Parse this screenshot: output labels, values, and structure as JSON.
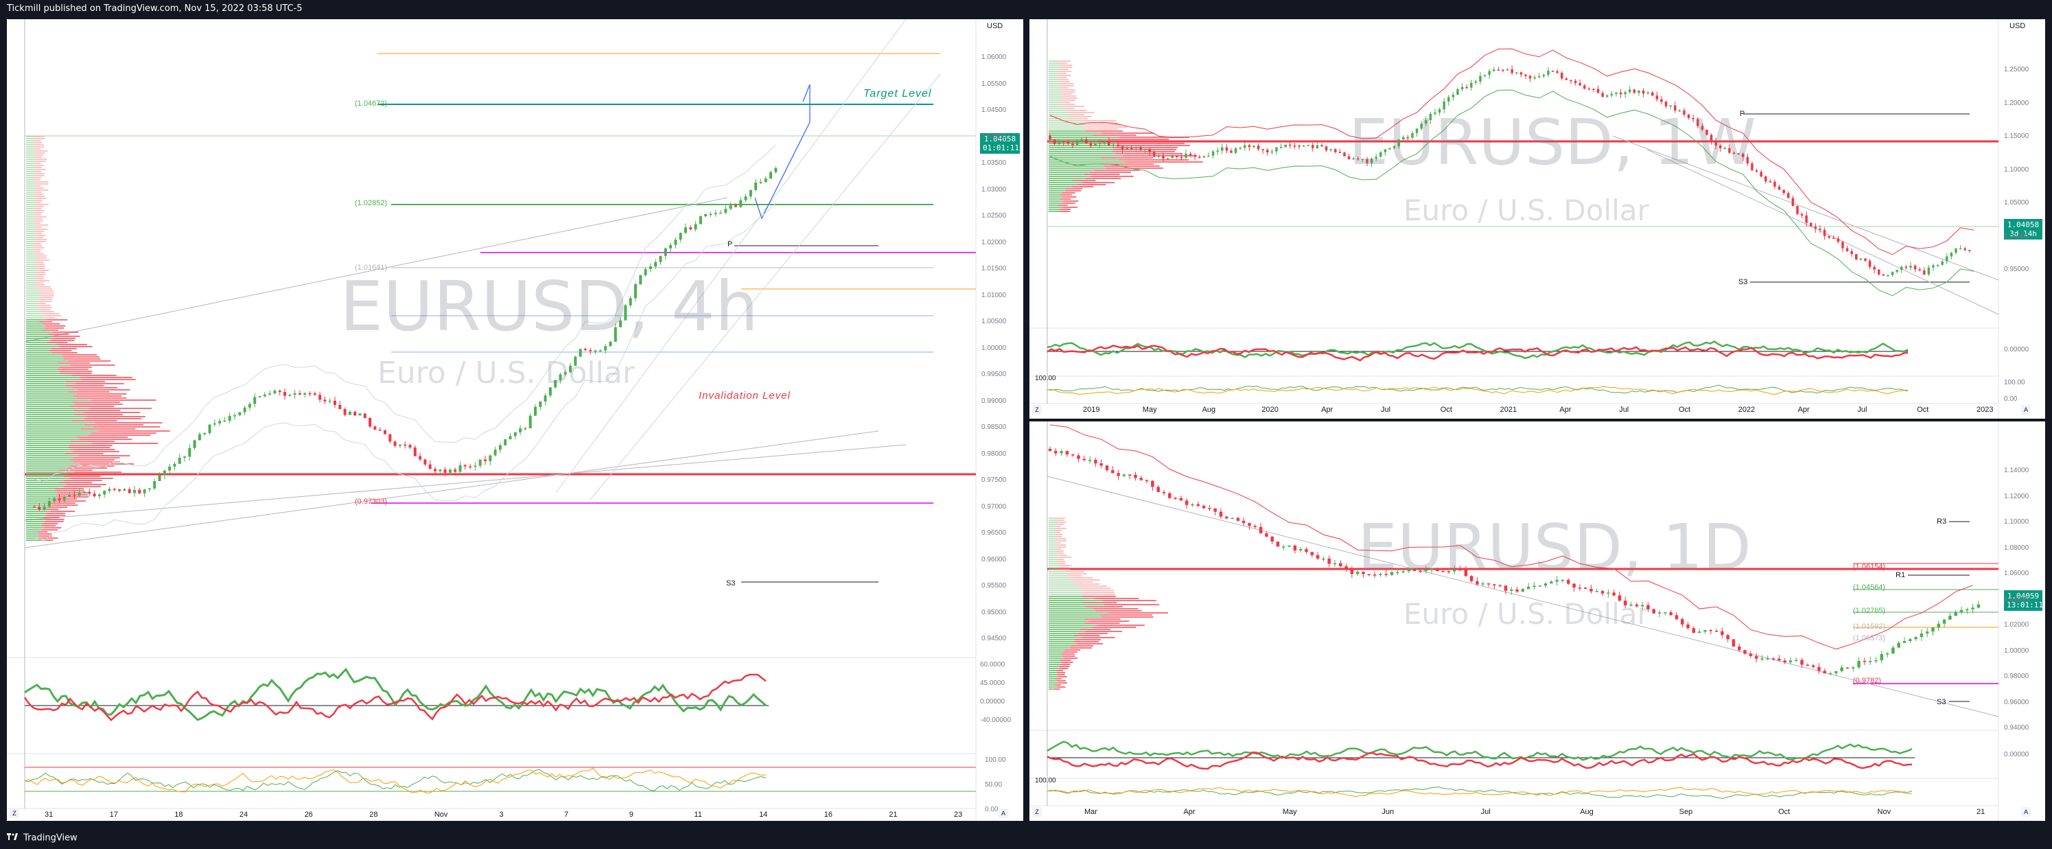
{
  "header": {
    "publisher_text": "Tickmill published on TradingView.com, Nov 15, 2022 03:58 UTC-5"
  },
  "footer": {
    "brand": "TradingView"
  },
  "axis_buttons": {
    "zoom": "Z",
    "auto": "A"
  },
  "panels": {
    "left": {
      "symbol": "EURUSD, 4h",
      "description": "Euro / U.S. Dollar",
      "currency": "USD",
      "price": "1.04058",
      "countdown": "01:01:11",
      "target_label": "Target Level",
      "invalidation_label": "Invalidation Level",
      "fib_labels": [
        "(1.04672)",
        "(1.02852)",
        "(1.01641)",
        "(0.97303)"
      ],
      "pivot_labels": [
        "P",
        "S3"
      ],
      "price_ticks": [
        "1.06000",
        "1.05500",
        "1.04500",
        "1.04000",
        "1.03500",
        "1.03000",
        "1.02500",
        "1.02000",
        "1.01500",
        "1.01000",
        "1.00500",
        "1.00000",
        "0.99500",
        "0.99000",
        "0.98500",
        "0.98000",
        "0.97500",
        "0.97000",
        "0.96500",
        "0.96000",
        "0.95500",
        "0.95000",
        "0.94500"
      ],
      "rsi_ticks": [
        "60.0000",
        "45.0000",
        "0.00000",
        "-40.00000"
      ],
      "stoch_ticks": [
        "100.00",
        "50.00",
        "0.00"
      ],
      "time_ticks": [
        "31",
        "17",
        "18",
        "24",
        "26",
        "28",
        "Nov",
        "3",
        "7",
        "9",
        "11",
        "14",
        "16",
        "21",
        "23"
      ]
    },
    "weekly": {
      "symbol": "EURUSD, 1W",
      "description": "Euro / U.S. Dollar",
      "currency": "USD",
      "price": "1.04058",
      "countdown": "3d 14h",
      "pivot_labels": [
        "P",
        "S3"
      ],
      "price_ticks": [
        "1.25000",
        "1.20000",
        "1.15000",
        "1.10000",
        "1.05000",
        "1.00000",
        "0.95000"
      ],
      "rsi_ticks": [
        "0.00000"
      ],
      "stoch_label": "100.00",
      "stoch_ticks": [
        "100.00",
        "0.00"
      ],
      "time_ticks": [
        "2019",
        "May",
        "Aug",
        "2020",
        "Apr",
        "Jul",
        "Oct",
        "2021",
        "Apr",
        "Jul",
        "Oct",
        "2022",
        "Apr",
        "Jul",
        "Oct",
        "2023"
      ]
    },
    "daily": {
      "symbol": "EURUSD, 1D",
      "description": "Euro / U.S. Dollar",
      "currency": "USD",
      "price": "1.04059",
      "countdown": "13:01:11",
      "fib_labels": [
        "(1.06154)",
        "(1.04564)",
        "(1.02765)",
        "(1.01592)",
        "(1.00573)",
        "(0.9782)"
      ],
      "pivot_labels": [
        "R3",
        "R1",
        "S3"
      ],
      "price_ticks": [
        "1.14000",
        "1.12000",
        "1.10000",
        "1.08000",
        "1.06000",
        "1.04000",
        "1.02000",
        "1.00000",
        "0.98000",
        "0.96000",
        "0.94000"
      ],
      "rsi_ticks": [
        "0.00000"
      ],
      "stoch_label": "100.00",
      "time_ticks": [
        "Mar",
        "Apr",
        "May",
        "Jun",
        "Jul",
        "Aug",
        "Sep",
        "Oct",
        "Nov",
        "21"
      ]
    }
  },
  "colors": {
    "up": "#4caf50",
    "down": "#f23645",
    "target": "#089981",
    "pink": "#e040fb",
    "orange": "#ff9800",
    "blue": "#2962ff"
  }
}
